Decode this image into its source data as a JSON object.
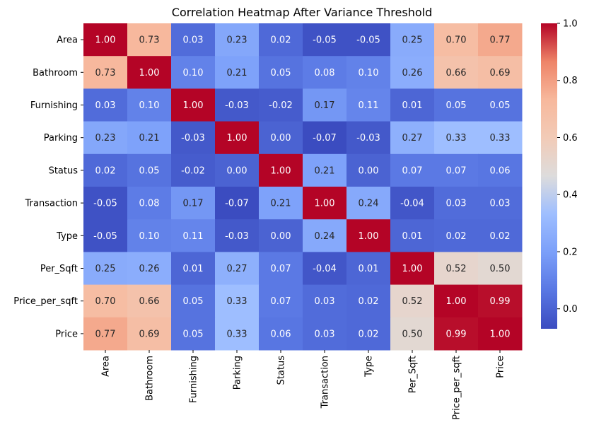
{
  "chart_data": {
    "type": "heatmap",
    "title": "Correlation Heatmap After Variance Threshold",
    "row_labels": [
      "Area",
      "Bathroom",
      "Furnishing",
      "Parking",
      "Status",
      "Transaction",
      "Type",
      "Per_Sqft",
      "Price_per_sqft",
      "Price"
    ],
    "col_labels": [
      "Area",
      "Bathroom",
      "Furnishing",
      "Parking",
      "Status",
      "Transaction",
      "Type",
      "Per_Sqft",
      "Price_per_sqft",
      "Price"
    ],
    "values": [
      [
        1.0,
        0.73,
        0.03,
        0.23,
        0.02,
        -0.05,
        -0.05,
        0.25,
        0.7,
        0.77
      ],
      [
        0.73,
        1.0,
        0.1,
        0.21,
        0.05,
        0.08,
        0.1,
        0.26,
        0.66,
        0.69
      ],
      [
        0.03,
        0.1,
        1.0,
        -0.03,
        -0.02,
        0.17,
        0.11,
        0.01,
        0.05,
        0.05
      ],
      [
        0.23,
        0.21,
        -0.03,
        1.0,
        0.0,
        -0.07,
        -0.03,
        0.27,
        0.33,
        0.33
      ],
      [
        0.02,
        0.05,
        -0.02,
        0.0,
        1.0,
        0.21,
        0.0,
        0.07,
        0.07,
        0.06
      ],
      [
        -0.05,
        0.08,
        0.17,
        -0.07,
        0.21,
        1.0,
        0.24,
        -0.04,
        0.03,
        0.03
      ],
      [
        -0.05,
        0.1,
        0.11,
        -0.03,
        0.0,
        0.24,
        1.0,
        0.01,
        0.02,
        0.02
      ],
      [
        0.25,
        0.26,
        0.01,
        0.27,
        0.07,
        -0.04,
        0.01,
        1.0,
        0.52,
        0.5
      ],
      [
        0.7,
        0.66,
        0.05,
        0.33,
        0.07,
        0.03,
        0.02,
        0.52,
        1.0,
        0.99
      ],
      [
        0.77,
        0.69,
        0.05,
        0.33,
        0.06,
        0.03,
        0.02,
        0.5,
        0.99,
        1.0
      ]
    ],
    "value_format": "2 decimals",
    "colormap": "coolwarm",
    "colorbar": {
      "range": [
        -0.07,
        1.0
      ],
      "ticks": [
        1.0,
        0.8,
        0.6,
        0.4,
        0.2,
        0.0
      ],
      "tick_labels": [
        "1.0",
        "0.8",
        "0.6",
        "0.4",
        "0.2",
        "0.0"
      ]
    }
  }
}
